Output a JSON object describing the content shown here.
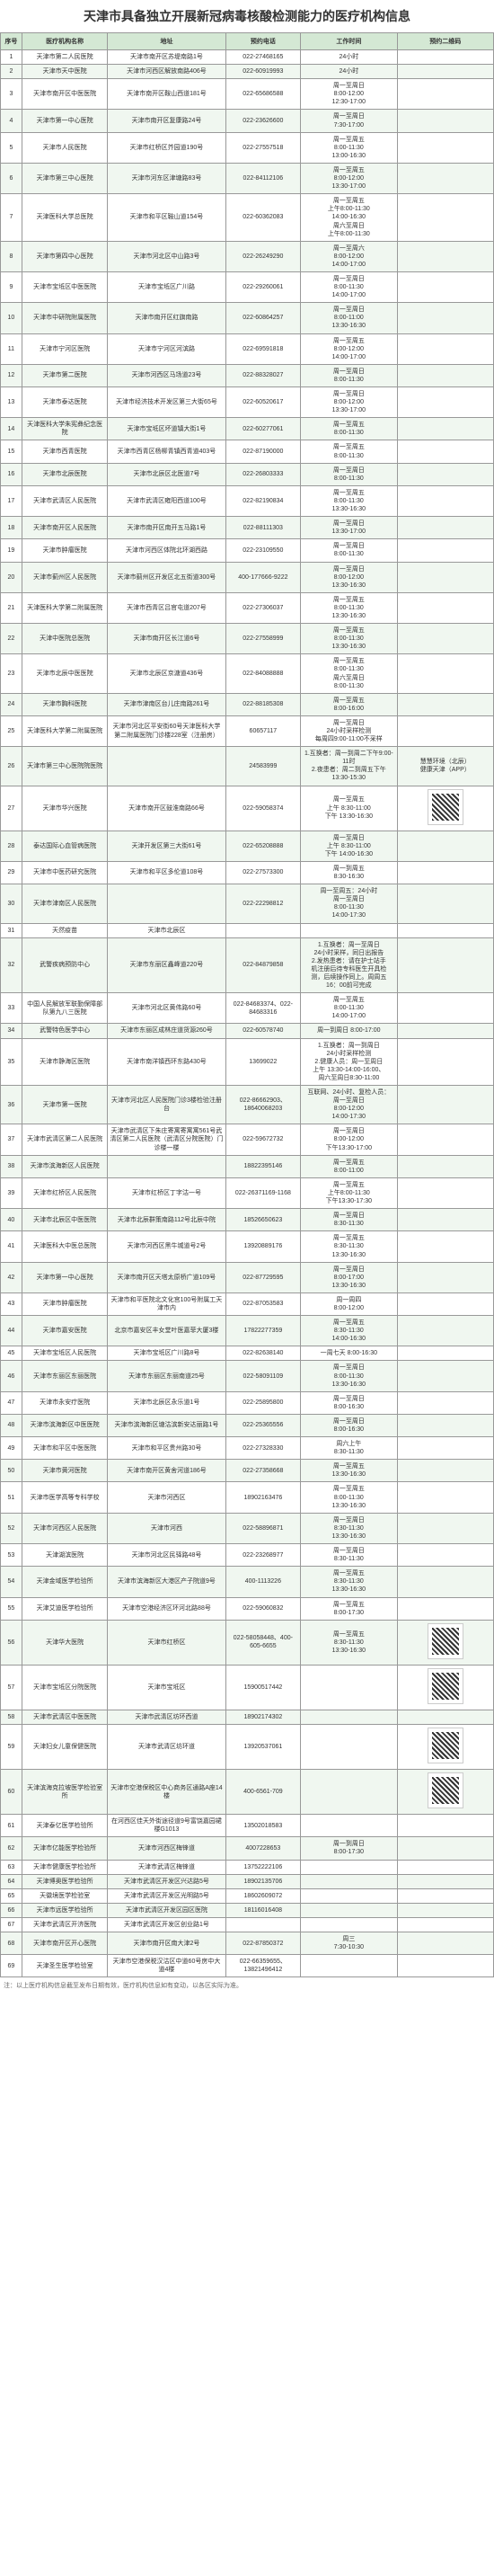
{
  "title": "天津市具备独立开展新冠病毒核酸检测能力的医疗机构信息",
  "headers": [
    "序号",
    "医疗机构名称",
    "地址",
    "预约电话",
    "工作时间",
    "预约二维码"
  ],
  "footnote": "注：以上医疗机构信息截至发布日期有效，医疗机构信息如有变动，以各区实际为准。",
  "rows": [
    {
      "i": 1,
      "n": "天津市第二人民医院",
      "a": "天津市南开区苏堤南路1号",
      "p": "022-27468165",
      "h": "24小时",
      "b": ""
    },
    {
      "i": 2,
      "n": "天津市天中医院",
      "a": "天津市河西区解放南路406号",
      "p": "022-60919993",
      "h": "24小时",
      "b": ""
    },
    {
      "i": 3,
      "n": "天津市南开区中医医院",
      "a": "天津市南开区鞍山西道181号",
      "p": "022-65686588",
      "h": "周一至周日\n8:00-12:00\n12:30-17:00",
      "b": ""
    },
    {
      "i": 4,
      "n": "天津市第一中心医院",
      "a": "天津市南开区复康路24号",
      "p": "022-23626600",
      "h": "周一至周日\n7:30-17:00",
      "b": ""
    },
    {
      "i": 5,
      "n": "天津市人民医院",
      "a": "天津市红桥区芥园道190号",
      "p": "022-27557518",
      "h": "周一至周五\n8:00-11:30\n13:00-16:30",
      "b": ""
    },
    {
      "i": 6,
      "n": "天津市第三中心医院",
      "a": "天津市河东区津塘路83号",
      "p": "022-84112106",
      "h": "周一至周五\n8:00-12:00\n13:30-17:00",
      "b": ""
    },
    {
      "i": 7,
      "n": "天津医科大学总医院",
      "a": "天津市和平区鞍山道154号",
      "p": "022-60362083",
      "h": "周一至周五\n上午8:00-11:30\n14:00-16:30\n周六至周日\n上午8:00-11:30",
      "b": ""
    },
    {
      "i": 8,
      "n": "天津市第四中心医院",
      "a": "天津市河北区中山路3号",
      "p": "022-26249290",
      "h": "周一至周六\n8:00-12:00\n14:00-17:00",
      "b": ""
    },
    {
      "i": 9,
      "n": "天津市宝坻区中医医院",
      "a": "天津市宝坻区广川路",
      "p": "022-29260061",
      "h": "周一至周日\n8:00-11:30\n14:00-17:00",
      "b": ""
    },
    {
      "i": 10,
      "n": "天津市中研院附属医院",
      "a": "天津市南开区红旗南路",
      "p": "022-60864257",
      "h": "周一至周日\n8:00-11:00\n13:30-16:30",
      "b": ""
    },
    {
      "i": 11,
      "n": "天津市宁河区医院",
      "a": "天津市宁河区河滨路",
      "p": "022-69591818",
      "h": "周一至周五\n8:00-12:00\n14:00-17:00",
      "b": ""
    },
    {
      "i": 12,
      "n": "天津市第二医院",
      "a": "天津市河西区马场道23号",
      "p": "022-88328027",
      "h": "周一至周日\n8:00-11:30",
      "b": ""
    },
    {
      "i": 13,
      "n": "天津市泰达医院",
      "a": "天津市经济技术开发区第三大街65号",
      "p": "022-60520617",
      "h": "周一至周日\n8:00-12:00\n13:30-17:00",
      "b": ""
    },
    {
      "i": 14,
      "n": "天津医科大学朱宪彝纪念医院",
      "a": "天津市宝坻区坏道镇大街1号",
      "p": "022-60277061",
      "h": "周一至周五\n8:00-11:30",
      "b": ""
    },
    {
      "i": 15,
      "n": "天津市西青医院",
      "a": "天津市西青区杨柳青镇西青道403号",
      "p": "022-87190000",
      "h": "周一至周五\n8:00-11:30",
      "b": ""
    },
    {
      "i": 16,
      "n": "天津市北辰医院",
      "a": "天津市北辰区北医道7号",
      "p": "022-26803333",
      "h": "周一至周日\n8:00-11:30",
      "b": ""
    },
    {
      "i": 17,
      "n": "天津市武清区人民医院",
      "a": "天津市武清区雍阳西道100号",
      "p": "022-82190834",
      "h": "周一至周五\n8:00-11:30\n13:30-16:30",
      "b": ""
    },
    {
      "i": 18,
      "n": "天津市南开区人民医院",
      "a": "天津市南开区南开五马路1号",
      "p": "022-88111303",
      "h": "周一至周日\n13:30-17:00",
      "b": ""
    },
    {
      "i": 19,
      "n": "天津市肿瘤医院",
      "a": "天津市河西区体院北环湖西路",
      "p": "022-23109550",
      "h": "周一至周日\n8:00-11:30",
      "b": ""
    },
    {
      "i": 20,
      "n": "天津市蓟州区人民医院",
      "a": "天津市蓟州区开发区北五街道300号",
      "p": "400-177666-9222",
      "h": "周一至周日\n8:00-12:00\n13:30-16:30",
      "b": ""
    },
    {
      "i": 21,
      "n": "天津医科大学第二附属医院",
      "a": "天津市西青区吕官屯道207号",
      "p": "022-27306037",
      "h": "周一至周五\n8:00-11:30\n13:30-16:30",
      "b": ""
    },
    {
      "i": 22,
      "n": "天津中医院总医院",
      "a": "天津市南开区长江道6号",
      "p": "022-27558999",
      "h": "周一至周五\n8:00-11:30\n13:30-16:30",
      "b": ""
    },
    {
      "i": 23,
      "n": "天津市北辰中医医院",
      "a": "天津市北辰区京溏道436号",
      "p": "022-84088888",
      "h": "周一至周五\n8:00-11:30\n周六至周日\n8:00-11:30",
      "b": ""
    },
    {
      "i": 24,
      "n": "天津市胸科医院",
      "a": "天津市津南区台儿庄南路261号",
      "p": "022-88185308",
      "h": "周一至周五\n8:00-16:00",
      "b": ""
    },
    {
      "i": 25,
      "n": "天津医科大学第二附属医院",
      "a": "天津市河北区平安街60号天津医科大学第二附属医院门诊楼228室（注册房）",
      "p": "60657117",
      "h": "周一至周日\n24小时采样检测\n每周四9:00-11:00不采样",
      "b": ""
    },
    {
      "i": 26,
      "n": "天津市第三中心医院院医院",
      "a": "",
      "p": "24583999",
      "h": "1.互换者：周一到周二下午9:00-11时\n2.夜患者：周二到周五下午13:30-15:30",
      "b": "慧慧环境（北辰）\n健康天津（APP）"
    },
    {
      "i": 27,
      "n": "天津市华兴医院",
      "a": "天津市南开区鼓淮南路66号",
      "p": "022-59058374",
      "h": "周一至周五\n上午 8:30-11:00\n下午 13:30-16:30",
      "b": "qr"
    },
    {
      "i": 28,
      "n": "泰达国际心血管病医院",
      "a": "天津开发区第三大街61号",
      "p": "022-65208888",
      "h": "周一至周日\n上午 8:30-11:00\n下午 14:00-16:30",
      "b": ""
    },
    {
      "i": 29,
      "n": "天津市中医药研究医院",
      "a": "天津市和平区多伦道108号",
      "p": "022-27573300",
      "h": "周一到周五\n8:30-16:30",
      "b": ""
    },
    {
      "i": 30,
      "n": "天津市津南区人民医院",
      "a": "",
      "p": "022-22298812",
      "h": "周一至周五：24小时\n周一至周日\n8:00-11:30\n14:00-17:30",
      "b": ""
    },
    {
      "i": 31,
      "n": "天然疫苗",
      "a": "天津市北辰区",
      "p": "",
      "h": "",
      "b": ""
    },
    {
      "i": 32,
      "n": "武警疾病预防中心",
      "a": "天津市东丽区鑫峰道220号",
      "p": "022-84879858",
      "h": "1.互换者：周一至周日\n24小时采样，同日出报告\n2.发热患者：请在护士站手\n机注册后待专科医生开具检\n测，后续操作同上。周周五\n16：00前可完成",
      "b": ""
    },
    {
      "i": 33,
      "n": "中国人民解放军联勤保障部队第九八三医院",
      "a": "天津市河北区黄伟路60号",
      "p": "022-84683374、022-84683316",
      "h": "周一至周五\n8:00-11:30\n14:00-17:00",
      "b": ""
    },
    {
      "i": 34,
      "n": "武警特色医学中心",
      "a": "天津市东丽区成林庄道货源260号",
      "p": "022-60578740",
      "h": "周一到周日 8:00-17:00",
      "b": ""
    },
    {
      "i": 35,
      "n": "天津市静海区医院",
      "a": "天津市南洋镇西环东路430号",
      "p": "13699022",
      "h": "1.互换者：周一到周日\n24小时采样检测\n2.健康人员：周一至周日\n上午 13:30-14:00-16:00、\n周六至周日8:30-11:00",
      "b": ""
    },
    {
      "i": 36,
      "n": "天津市第一医院",
      "a": "天津市河北区人民医院门诊3楼检验注册台",
      "p": "022-86662903、18640068203",
      "h": "互联网、24小时、复检人员：\n周一至周日\n8:00-12:00\n14:00-17:30",
      "b": ""
    },
    {
      "i": 37,
      "n": "天津市武清区第二人民医院",
      "a": "天津市武清区下朱庄寄寓寄寓寓561号武清区第二人民医院（武清区分院医院）门诊楼一楼",
      "p": "022-59672732",
      "h": "周一至周日\n8:00-12:00\n下午13:30-17:00",
      "b": ""
    },
    {
      "i": 38,
      "n": "天津市滨海新区人民医院",
      "a": "",
      "p": "18822395146",
      "h": "周一至周五\n8:00-11:00",
      "b": ""
    },
    {
      "i": 39,
      "n": "天津市红桥区人民医院",
      "a": "天津市红桥区丁字沽一号",
      "p": "022-26371169-1168",
      "h": "周一至周五\n上午8:00-11:30\n下午13:30-17:30",
      "b": ""
    },
    {
      "i": 40,
      "n": "天津市北辰区中医医院",
      "a": "天津市北辰群策南路112号北辰中院",
      "p": "18526650623",
      "h": "周一至周日\n8:30-11:30",
      "b": ""
    },
    {
      "i": 41,
      "n": "天津医科大中医总医院",
      "a": "天津市河西区黑牛城道号2号",
      "p": "13920889176",
      "h": "周一至周五\n8:30-11:30\n13:30-16:30",
      "b": ""
    },
    {
      "i": 42,
      "n": "天津市第一中心医院",
      "a": "天津市南开区天塔太原桥广道109号",
      "p": "022-87729595",
      "h": "周一至周日\n8:00-17:00\n13:30-16:30",
      "b": ""
    },
    {
      "i": 43,
      "n": "天津市肿瘤医院",
      "a": "天津市和平医院北文化宫100号附属工天津市内",
      "p": "022-87053583",
      "h": "周一周四\n8:00-12:00",
      "b": ""
    },
    {
      "i": 44,
      "n": "天津市嘉安医院",
      "a": "北京市嘉安区丰女堂叶医嘉菲大厦3楼",
      "p": "17822277359",
      "h": "周一至周五\n8:30-11:30\n14:00-16:30",
      "b": ""
    },
    {
      "i": 45,
      "n": "天津市宝坻区人民医院",
      "a": "天津市宝坻区广川路8号",
      "p": "022-82638140",
      "h": "一周七天 8:00-16:30",
      "b": ""
    },
    {
      "i": 46,
      "n": "天津市东丽区东丽医院",
      "a": "天津市东丽区东丽南道25号",
      "p": "022-58091109",
      "h": "周一至周日\n8:00-11:30\n13:30-16:30",
      "b": ""
    },
    {
      "i": 47,
      "n": "天津市永安疗医院",
      "a": "天津市北辰区永乐道1号",
      "p": "022-25895800",
      "h": "周一至周日\n8:00-16:30",
      "b": ""
    },
    {
      "i": 48,
      "n": "天津市滨海新区中医医院",
      "a": "天津市滨海新区塘沽滨新安达丽路1号",
      "p": "022-25365556",
      "h": "周一至周日\n8:00-16:30",
      "b": ""
    },
    {
      "i": 49,
      "n": "天津市和平区中医医院",
      "a": "天津市和平区贵州路30号",
      "p": "022-27328330",
      "h": "周六上午\n8:30-11:30",
      "b": ""
    },
    {
      "i": 50,
      "n": "天津市黄河医院",
      "a": "天津市南开区黄舍河道186号",
      "p": "022-27358668",
      "h": "周一至周五\n13:30-16:30",
      "b": ""
    },
    {
      "i": 51,
      "n": "天津市医学高等专科学校",
      "a": "天津市河西区",
      "p": "18902163476",
      "h": "周一至周五\n8:00-11:30\n13:30-16:30",
      "b": ""
    },
    {
      "i": 52,
      "n": "天津市河西区人民医院",
      "a": "天津市河西",
      "p": "022-58896871",
      "h": "周一至周日\n8:30-11:30\n13:30-16:30",
      "b": ""
    },
    {
      "i": 53,
      "n": "天津湖滨医院",
      "a": "天津市河北区民驿路48号",
      "p": "022-23268977",
      "h": "周一至周日\n8:30-11:30",
      "b": ""
    },
    {
      "i": 54,
      "n": "天津金域医学检验所",
      "a": "天津市滨海新区大港区产子院道9号",
      "p": "400-1113226",
      "h": "周一至周五\n8:30-11:30\n13:30-16:30",
      "b": ""
    },
    {
      "i": 55,
      "n": "天津艾迪医学检验所",
      "a": "天津市空港经济区环河北路88号",
      "p": "022-59060832",
      "h": "周一至周五\n8:00-17:30",
      "b": ""
    },
    {
      "i": 56,
      "n": "天津华大医院",
      "a": "天津市红桥区",
      "p": "022-58058448、400-605-6655",
      "h": "周一至周五\n8:30-11:30\n13:30-16:30",
      "b": "qr"
    },
    {
      "i": 57,
      "n": "天津市宝坻区分院医院",
      "a": "天津市宝坻区",
      "p": "15900517442",
      "h": "",
      "b": "qr"
    },
    {
      "i": 58,
      "n": "天津市武清区中医医院",
      "a": "天津市武清区坊环西道",
      "p": "18902174302",
      "h": "",
      "b": ""
    },
    {
      "i": 59,
      "n": "天津妇女儿童保健医院",
      "a": "天津市武清区坊环道",
      "p": "13920537061",
      "h": "",
      "b": "qr"
    },
    {
      "i": 60,
      "n": "天津滨海克拉坡医学检验室所",
      "a": "天津市空港保税区中心商务区通路A座14楼",
      "p": "400-6561-709",
      "h": "",
      "b": "qr"
    },
    {
      "i": 61,
      "n": "天津泰亿医学检验所",
      "a": "在河西区佳天外街途径道9号富饶嘉园裙楼G1013",
      "p": "13502018583",
      "h": "",
      "b": ""
    },
    {
      "i": 62,
      "n": "天津市亿能医学检验所",
      "a": "天津市河西区梅锋道",
      "p": "4007228653",
      "h": "周一到周日\n8:00-17:30",
      "b": ""
    },
    {
      "i": 63,
      "n": "天津市健康医学检验所",
      "a": "天津市武清区梅锋道",
      "p": "13752222106",
      "h": "",
      "b": ""
    },
    {
      "i": 64,
      "n": "天津博奥医学检验所",
      "a": "天津市武清区开发区兴达路5号",
      "p": "18902135706",
      "h": "",
      "b": ""
    },
    {
      "i": 65,
      "n": "天徽境医学检验室",
      "a": "天津市武清区开发区光明路5号",
      "p": "18602609072",
      "h": "",
      "b": ""
    },
    {
      "i": 66,
      "n": "天津市远医学检验所",
      "a": "天津市武清区开发区园区医院",
      "p": "18116016408",
      "h": "",
      "b": ""
    },
    {
      "i": 67,
      "n": "天津市武清区开济医院",
      "a": "天津市武清区开发区创业路1号",
      "p": "",
      "h": "",
      "b": ""
    },
    {
      "i": 68,
      "n": "天津市南开区开心医院",
      "a": "天津市南开区南大津2号",
      "p": "022-87850372",
      "h": "周三\n7:30-10:30",
      "b": ""
    },
    {
      "i": 69,
      "n": "天津圣生医学检验室",
      "a": "天津市空港保税汉沽区中道60号房中大道4楼",
      "p": "022-66359655、13821496412",
      "h": "",
      "b": ""
    }
  ]
}
